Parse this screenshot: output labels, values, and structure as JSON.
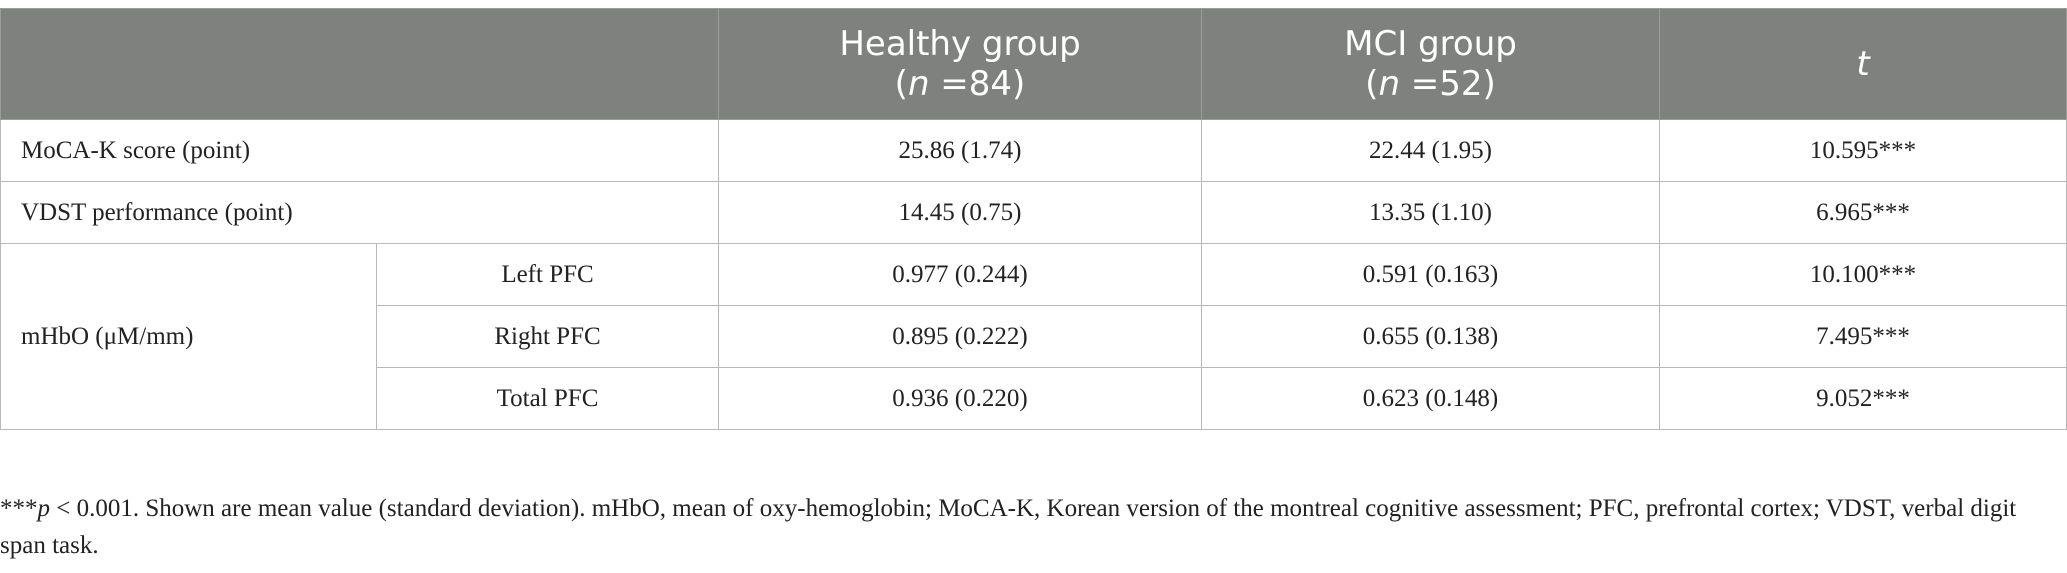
{
  "header": {
    "col_group1_name": "Healthy group",
    "col_group1_n_prefix": "(",
    "col_group1_n_italic": "n",
    "col_group1_n_suffix": " =84)",
    "col_group2_name": "MCI group",
    "col_group2_n_prefix": "(",
    "col_group2_n_italic": "n",
    "col_group2_n_suffix": " =52)",
    "col_t": "t"
  },
  "rows": {
    "moca": {
      "label": "MoCA-K score (point)",
      "healthy": "25.86 (1.74)",
      "mci": "22.44 (1.95)",
      "t": "10.595***"
    },
    "vdst": {
      "label": "VDST performance (point)",
      "healthy": "14.45 (0.75)",
      "mci": "13.35 (1.10)",
      "t": "6.965***"
    },
    "mhbo": {
      "label": "mHbO (μM/mm)",
      "left": {
        "label": "Left PFC",
        "healthy": "0.977 (0.244)",
        "mci": "0.591 (0.163)",
        "t": "10.100***"
      },
      "right": {
        "label": "Right PFC",
        "healthy": "0.895 (0.222)",
        "mci": "0.655 (0.138)",
        "t": "7.495***"
      },
      "total": {
        "label": "Total PFC",
        "healthy": "0.936 (0.220)",
        "mci": "0.623 (0.148)",
        "t": "9.052***"
      }
    }
  },
  "footnote": {
    "stars": "***",
    "p_symbol": "p",
    "text": " < 0.001. Shown are mean value (standard deviation). mHbO, mean of oxy-hemoglobin; MoCA-K, Korean version of the montreal cognitive assessment; PFC, prefrontal cortex; VDST, verbal digit span task."
  }
}
